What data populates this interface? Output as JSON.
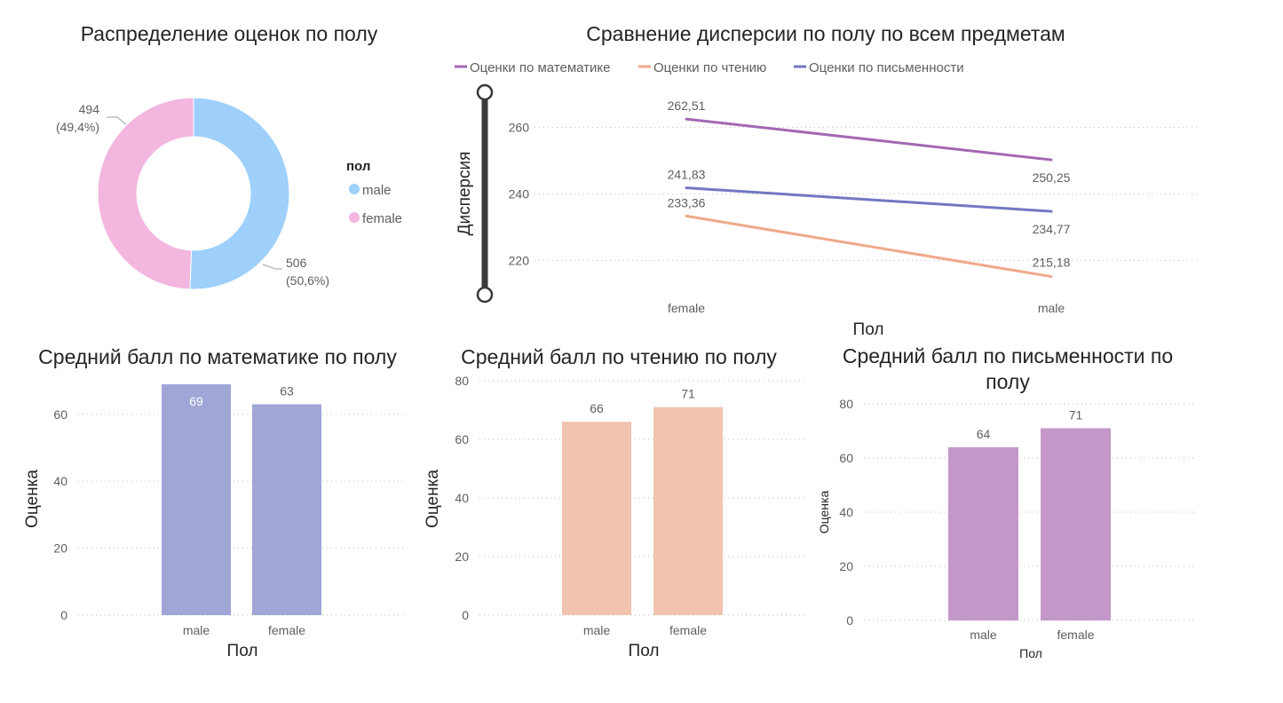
{
  "colors": {
    "male": "#9ed0fb",
    "female": "#f2b6df",
    "math": "#a368b3",
    "reading": "#f0a98b",
    "writing": "#7377c2",
    "math_bar": "#a0a6d6",
    "reading_bar": "#f2c3ae",
    "writing_bar": "#c497c9"
  },
  "chart_data": [
    {
      "type": "pie",
      "title": "Распределение оценок по полу",
      "legend_title": "пол",
      "legend_position": "right",
      "categories": [
        "male",
        "female"
      ],
      "values": [
        506,
        494
      ],
      "data_labels": [
        "506",
        "494"
      ],
      "percent_labels": [
        "(50,6%)",
        "(49,4%)"
      ]
    },
    {
      "type": "line",
      "title": "Сравнение дисперсии по полу по всем предметам",
      "xlabel": "Пол",
      "ylabel": "Дисперсия",
      "x": [
        "female",
        "male"
      ],
      "ylim": [
        215,
        265
      ],
      "yticks": [
        220,
        240,
        260
      ],
      "legend_position": "top",
      "series": [
        {
          "name": "Оценки по математике",
          "values": [
            262.51,
            250.25
          ],
          "labels": [
            "262,51",
            "250,25"
          ]
        },
        {
          "name": "Оценки по чтению",
          "values": [
            233.36,
            215.18
          ],
          "labels": [
            "233,36",
            "215,18"
          ]
        },
        {
          "name": "Оценки по письменности",
          "values": [
            241.83,
            234.77
          ],
          "labels": [
            "241,83",
            "234,77"
          ]
        }
      ]
    },
    {
      "type": "bar",
      "title": "Средний балл по математике по полу",
      "xlabel": "Пол",
      "ylabel": "Оценка",
      "categories": [
        "male",
        "female"
      ],
      "values": [
        69,
        63
      ],
      "ylim": [
        0,
        69
      ],
      "yticks": [
        0,
        20,
        40,
        60
      ]
    },
    {
      "type": "bar",
      "title": "Средний балл по чтению по полу",
      "xlabel": "Пол",
      "ylabel": "Оценка",
      "categories": [
        "male",
        "female"
      ],
      "values": [
        66,
        71
      ],
      "ylim": [
        0,
        80
      ],
      "yticks": [
        0,
        20,
        40,
        60,
        80
      ]
    },
    {
      "type": "bar",
      "title": "Средний балл по письменности по полу",
      "xlabel": "Пол",
      "ylabel": "Оценка",
      "categories": [
        "male",
        "female"
      ],
      "values": [
        64,
        71
      ],
      "ylim": [
        0,
        80
      ],
      "yticks": [
        0,
        20,
        40,
        60,
        80
      ]
    }
  ]
}
